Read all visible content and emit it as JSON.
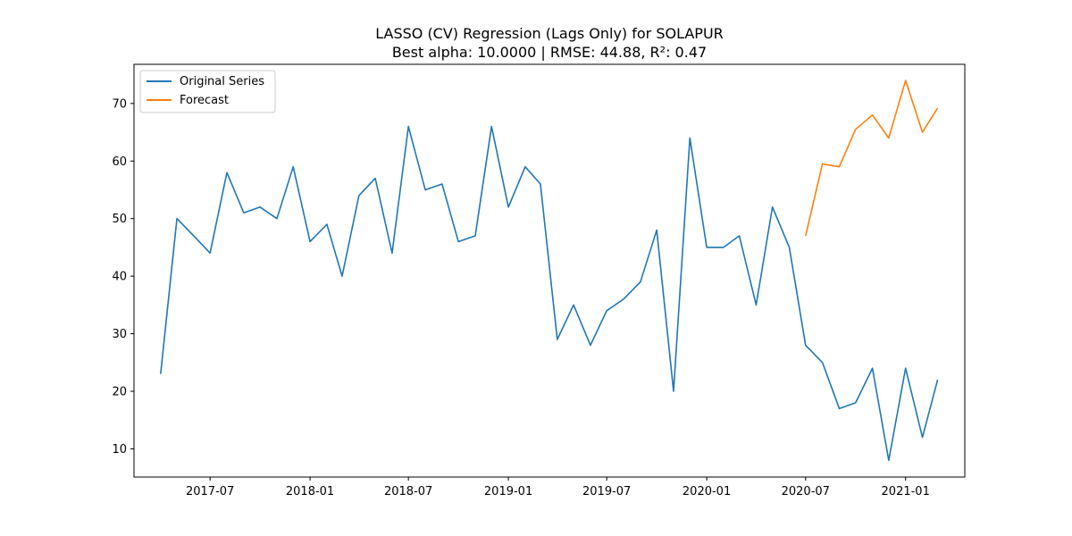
{
  "chart_data": {
    "type": "line",
    "title": "LASSO (CV) Regression (Lags Only) for SOLAPUR",
    "subtitle": "Best alpha: 10.0000 | RMSE: 44.88, R²: 0.47",
    "xlabel": "",
    "ylabel": "",
    "xlim": [
      "2017-02-11",
      "2021-04-20"
    ],
    "ylim": [
      5.1,
      76.8
    ],
    "x_ticks": [
      "2017-07",
      "2018-01",
      "2018-07",
      "2019-01",
      "2019-07",
      "2020-01",
      "2020-07",
      "2021-01"
    ],
    "y_ticks": [
      10,
      20,
      30,
      40,
      50,
      60,
      70
    ],
    "grid": false,
    "legend_position": "top-left",
    "series": [
      {
        "name": "Original Series",
        "color": "#1f77b4",
        "x": [
          "2017-04-01",
          "2017-05-01",
          "2017-06-01",
          "2017-07-01",
          "2017-08-01",
          "2017-09-01",
          "2017-10-01",
          "2017-11-01",
          "2017-12-01",
          "2018-01-01",
          "2018-02-01",
          "2018-03-01",
          "2018-04-01",
          "2018-05-01",
          "2018-06-01",
          "2018-07-01",
          "2018-08-01",
          "2018-09-01",
          "2018-10-01",
          "2018-11-01",
          "2018-12-01",
          "2019-01-01",
          "2019-02-01",
          "2019-03-01",
          "2019-04-01",
          "2019-05-01",
          "2019-06-01",
          "2019-07-01",
          "2019-08-01",
          "2019-09-01",
          "2019-10-01",
          "2019-11-01",
          "2019-12-01",
          "2020-01-01",
          "2020-02-01",
          "2020-03-01",
          "2020-04-01",
          "2020-05-01",
          "2020-06-01",
          "2020-07-01",
          "2020-08-01",
          "2020-09-01",
          "2020-10-01",
          "2020-11-01",
          "2020-12-01",
          "2021-01-01",
          "2021-02-01",
          "2021-03-01"
        ],
        "values": [
          23,
          50,
          47,
          44,
          58,
          51,
          52,
          50,
          59,
          46,
          49,
          40,
          54,
          57,
          44,
          66,
          55,
          56,
          46,
          47,
          66,
          52,
          59,
          56,
          29,
          35,
          28,
          34,
          36,
          39,
          48,
          20,
          64,
          45,
          45,
          47,
          35,
          52,
          45,
          28,
          25,
          17,
          18,
          24,
          8,
          24,
          12,
          22
        ]
      },
      {
        "name": "Forecast",
        "color": "#ff7f0e",
        "x": [
          "2020-07-01",
          "2020-08-01",
          "2020-09-01",
          "2020-10-01",
          "2020-11-01",
          "2020-12-01",
          "2021-01-01",
          "2021-02-01",
          "2021-03-01"
        ],
        "values": [
          47,
          59.5,
          59,
          65.5,
          68,
          64,
          74,
          65,
          69.2
        ]
      }
    ]
  }
}
